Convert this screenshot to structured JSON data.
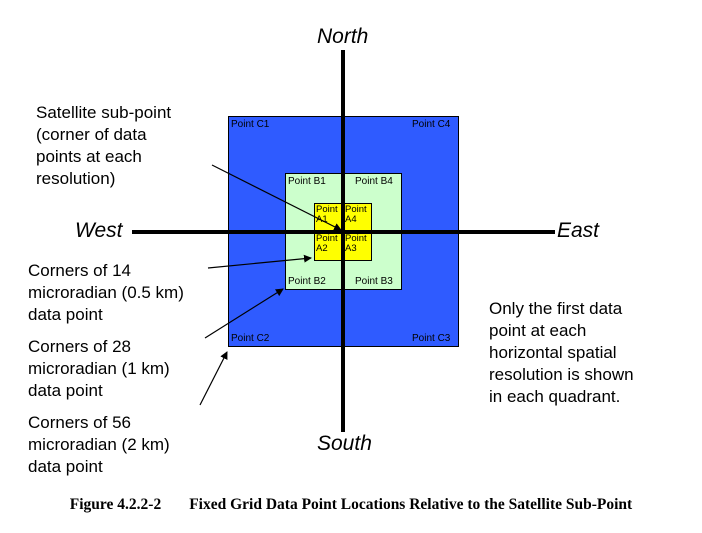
{
  "directions": {
    "north": "North",
    "south": "South",
    "east": "East",
    "west": "West"
  },
  "points": {
    "c1": "Point C1",
    "c2": "Point C2",
    "c3": "Point C3",
    "c4": "Point C4",
    "b1": "Point B1",
    "b2": "Point B2",
    "b3": "Point B3",
    "b4": "Point B4",
    "a1_line1": "Point",
    "a1_line2": "A1",
    "a2_line1": "Point",
    "a2_line2": "A2",
    "a3_line1": "Point",
    "a3_line2": "A3",
    "a4_line1": "Point",
    "a4_line2": "A4"
  },
  "annotations": {
    "subpoint": [
      "Satellite sub-point",
      "(corner of data",
      "points at each",
      "resolution)"
    ],
    "corners_14": [
      "Corners of 14",
      "microradian (0.5 km)",
      "data point"
    ],
    "corners_28": [
      "Corners of 28",
      "microradian (1 km)",
      "data point"
    ],
    "corners_56": [
      "Corners of 56",
      "microradian (2 km)",
      "data point"
    ],
    "only_first": [
      "Only the first data",
      "point at each",
      "horizontal spatial",
      "resolution is shown",
      "in each quadrant."
    ]
  },
  "colors": {
    "outer_square": "#2f5bff",
    "middle_square": "#ccffcc",
    "inner_squares": "#ffff00"
  },
  "caption": {
    "number": "Figure 4.2.2-2",
    "text": "Fixed Grid Data Point Locations Relative to the Satellite Sub-Point"
  }
}
